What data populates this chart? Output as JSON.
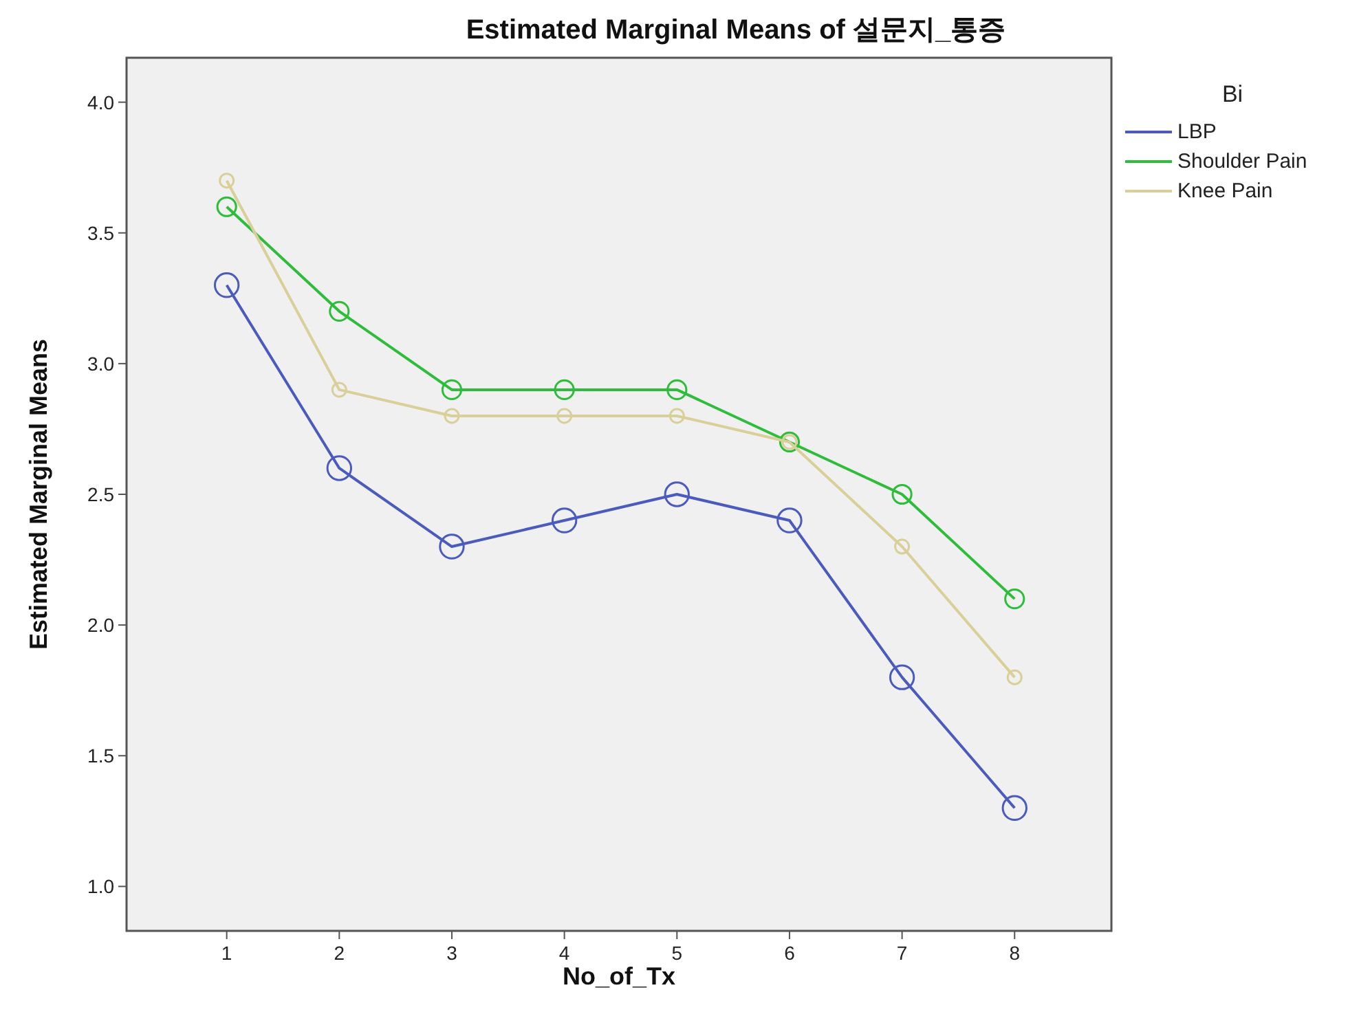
{
  "chart_data": {
    "type": "line",
    "title": "Estimated Marginal Means of 설문지_통증",
    "xlabel": "No_of_Tx",
    "ylabel": "Estimated Marginal Means",
    "legend_title": "Bi",
    "x": [
      1,
      2,
      3,
      4,
      5,
      6,
      7,
      8
    ],
    "series": [
      {
        "name": "LBP",
        "color": "#4a5bbd",
        "values": [
          3.3,
          2.6,
          2.3,
          2.4,
          2.5,
          2.4,
          1.8,
          1.3
        ]
      },
      {
        "name": "Shoulder Pain",
        "color": "#2ebd3a",
        "values": [
          3.6,
          3.2,
          2.9,
          2.9,
          2.9,
          2.7,
          2.5,
          2.1
        ]
      },
      {
        "name": "Knee Pain",
        "color": "#d9cf98",
        "values": [
          3.7,
          2.9,
          2.8,
          2.8,
          2.8,
          2.7,
          2.3,
          1.8
        ]
      }
    ],
    "xlim": [
      0.11,
      8.86
    ],
    "ylim": [
      0.83,
      4.17
    ],
    "xticks": [
      1,
      2,
      3,
      4,
      5,
      6,
      7,
      8
    ],
    "yticks": [
      {
        "value": 1,
        "label": "1.0"
      },
      {
        "value": 1.5,
        "label": "1.5"
      },
      {
        "value": 2,
        "label": "2.0"
      },
      {
        "value": 2.5,
        "label": "2.5"
      },
      {
        "value": 3,
        "label": "3.0"
      },
      {
        "value": 3.5,
        "label": "3.5"
      },
      {
        "value": 4,
        "label": "4.0"
      }
    ],
    "legend": "right",
    "marker": "circle"
  }
}
